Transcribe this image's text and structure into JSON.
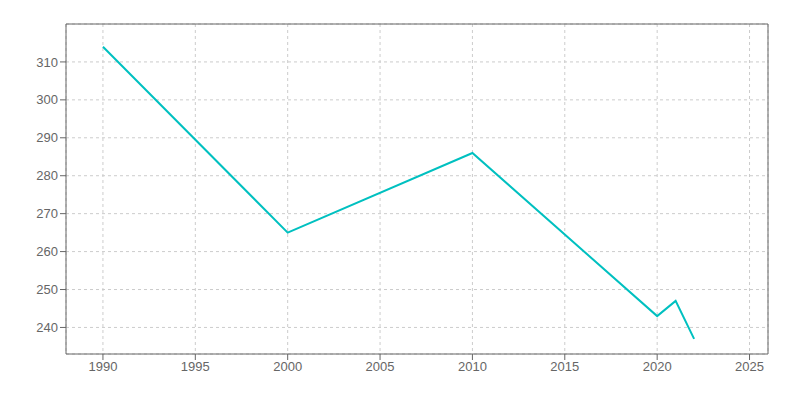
{
  "chart_data": {
    "type": "line",
    "x": [
      1990,
      2000,
      2010,
      2020,
      2021,
      2022
    ],
    "values": [
      314,
      265,
      286,
      243,
      247,
      237
    ],
    "color": "#00C0C0",
    "xlim": [
      1988,
      2026
    ],
    "ylim": [
      233,
      320
    ],
    "xticks": [
      1990,
      1995,
      2000,
      2005,
      2010,
      2015,
      2020,
      2025
    ],
    "yticks": [
      240,
      250,
      260,
      270,
      280,
      290,
      300,
      310
    ],
    "grid": true
  }
}
